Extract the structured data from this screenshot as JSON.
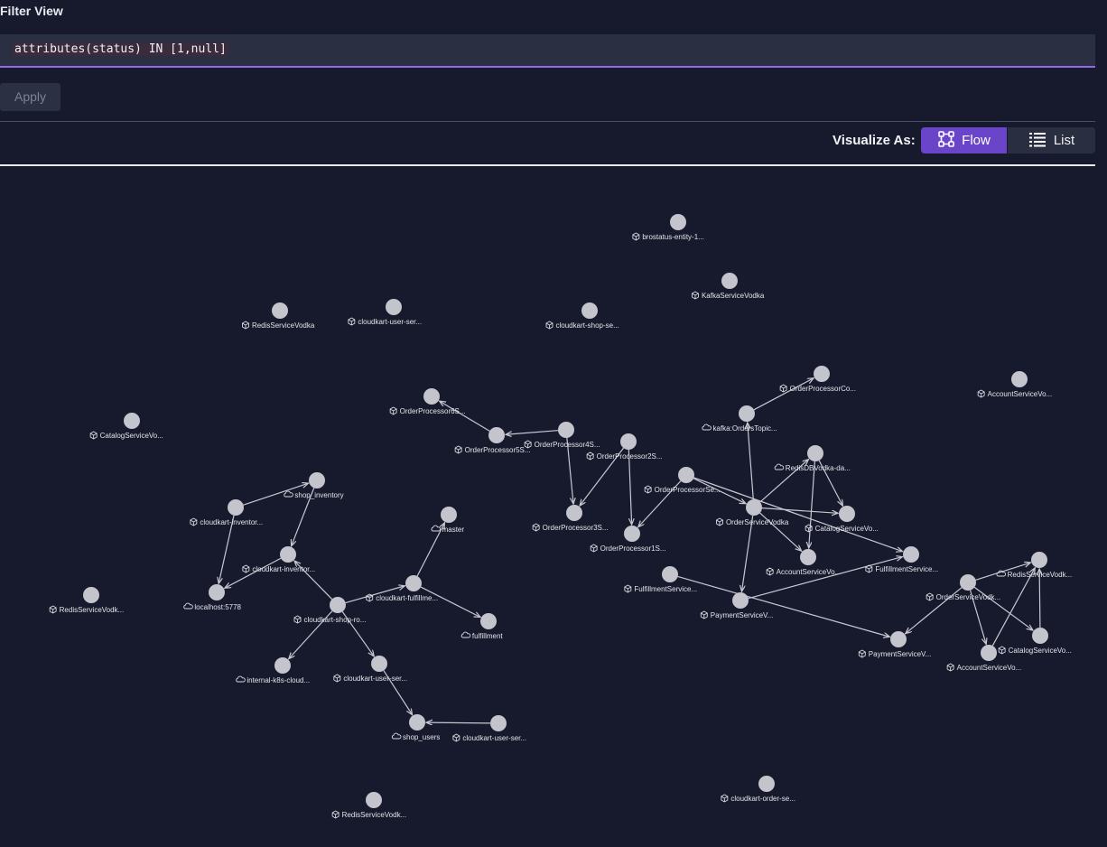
{
  "header": {
    "filter_label": "Filter View",
    "query": "attributes(status) IN [1,null]",
    "apply_label": "Apply"
  },
  "visualize": {
    "label": "Visualize As:",
    "options": [
      {
        "label": "Flow",
        "selected": true,
        "icon": "flow-icon"
      },
      {
        "label": "List",
        "selected": false,
        "icon": "list-icon"
      }
    ]
  },
  "colors": {
    "background": "#171a2c",
    "accent": "#6a45c9",
    "node": "#c4c4cc"
  },
  "graph": {
    "nodes": [
      {
        "id": "n1",
        "label": "brostatus-entity-1...",
        "icon": "service-icon"
      },
      {
        "id": "n2",
        "label": "KafkaServiceVodka",
        "icon": "service-icon"
      },
      {
        "id": "n3",
        "label": "RedisServiceVodka",
        "icon": "service-icon"
      },
      {
        "id": "n4",
        "label": "cloudkart-user-ser...",
        "icon": "service-icon"
      },
      {
        "id": "n5",
        "label": "cloudkart-shop-se...",
        "icon": "service-icon"
      },
      {
        "id": "n6",
        "label": "OrderProcessorCo...",
        "icon": "service-icon"
      },
      {
        "id": "n7",
        "label": "AccountServiceVo...",
        "icon": "service-icon"
      },
      {
        "id": "n8",
        "label": "OrderProcessor6S...",
        "icon": "service-icon"
      },
      {
        "id": "n9",
        "label": "kafka:OrdersTopic...",
        "icon": "cloud-icon"
      },
      {
        "id": "n10",
        "label": "CatalogServiceVo...",
        "icon": "service-icon"
      },
      {
        "id": "n11",
        "label": "OrderProcessor4S...",
        "icon": "service-icon"
      },
      {
        "id": "n12",
        "label": "OrderProcessor5S...",
        "icon": "service-icon"
      },
      {
        "id": "n13",
        "label": "OrderProcessor2S...",
        "icon": "service-icon"
      },
      {
        "id": "n14",
        "label": "RedisDBVodka-da...",
        "icon": "cloud-icon"
      },
      {
        "id": "n15",
        "label": "shop_inventory",
        "icon": "cloud-icon"
      },
      {
        "id": "n16",
        "label": "OrderProcessorSe...",
        "icon": "service-icon"
      },
      {
        "id": "n17",
        "label": "cloudkart-inventor...",
        "icon": "service-icon"
      },
      {
        "id": "n18",
        "label": "OrderServiceVodka",
        "icon": "service-icon"
      },
      {
        "id": "n19",
        "label": "CatalogServiceVo...",
        "icon": "service-icon"
      },
      {
        "id": "n20",
        "label": "master",
        "icon": "cloud-icon"
      },
      {
        "id": "n21",
        "label": "OrderProcessor3S...",
        "icon": "service-icon"
      },
      {
        "id": "n22",
        "label": "OrderProcessor1S...",
        "icon": "service-icon"
      },
      {
        "id": "n23",
        "label": "cloudkart-inventor...",
        "icon": "service-icon"
      },
      {
        "id": "n24",
        "label": "AccountServiceVo...",
        "icon": "service-icon"
      },
      {
        "id": "n25",
        "label": "FulfillmentService...",
        "icon": "service-icon"
      },
      {
        "id": "n26",
        "label": "RedisServiceVodk...",
        "icon": "cloud-icon"
      },
      {
        "id": "n27",
        "label": "FulfillmentService...",
        "icon": "service-icon"
      },
      {
        "id": "n28",
        "label": "OrderServiceVodk...",
        "icon": "service-icon"
      },
      {
        "id": "n29",
        "label": "cloudkart-fulfillme...",
        "icon": "service-icon"
      },
      {
        "id": "n30",
        "label": "localhost:5778",
        "icon": "cloud-icon"
      },
      {
        "id": "n31",
        "label": "RedisServiceVodk...",
        "icon": "service-icon"
      },
      {
        "id": "n32",
        "label": "PaymentServiceV...",
        "icon": "service-icon"
      },
      {
        "id": "n33",
        "label": "cloudkart-shop-ro...",
        "icon": "service-icon"
      },
      {
        "id": "n34",
        "label": "fulfillment",
        "icon": "cloud-icon"
      },
      {
        "id": "n35",
        "label": "CatalogServiceVo...",
        "icon": "service-icon"
      },
      {
        "id": "n36",
        "label": "PaymentServiceV...",
        "icon": "service-icon"
      },
      {
        "id": "n37",
        "label": "AccountServiceVo...",
        "icon": "service-icon"
      },
      {
        "id": "n38",
        "label": "internal-k8s-cloud...",
        "icon": "cloud-icon"
      },
      {
        "id": "n39",
        "label": "cloudkart-user-ser...",
        "icon": "service-icon"
      },
      {
        "id": "n40",
        "label": "shop_users",
        "icon": "cloud-icon"
      },
      {
        "id": "n41",
        "label": "cloudkart-user-ser...",
        "icon": "service-icon"
      },
      {
        "id": "n42",
        "label": "cloudkart-order-se...",
        "icon": "service-icon"
      },
      {
        "id": "n43",
        "label": "RedisServiceVodk...",
        "icon": "service-icon"
      }
    ],
    "edges": [
      [
        "n9",
        "n6"
      ],
      [
        "n11",
        "n12"
      ],
      [
        "n12",
        "n8"
      ],
      [
        "n11",
        "n21"
      ],
      [
        "n13",
        "n21"
      ],
      [
        "n13",
        "n22"
      ],
      [
        "n16",
        "n22"
      ],
      [
        "n16",
        "n18"
      ],
      [
        "n16",
        "n25"
      ],
      [
        "n18",
        "n9"
      ],
      [
        "n18",
        "n14"
      ],
      [
        "n18",
        "n19"
      ],
      [
        "n18",
        "n24"
      ],
      [
        "n18",
        "n32"
      ],
      [
        "n14",
        "n19"
      ],
      [
        "n14",
        "n24"
      ],
      [
        "n32",
        "n25"
      ],
      [
        "n17",
        "n15"
      ],
      [
        "n17",
        "n30"
      ],
      [
        "n15",
        "n23"
      ],
      [
        "n23",
        "n30"
      ],
      [
        "n33",
        "n23"
      ],
      [
        "n33",
        "n29"
      ],
      [
        "n33",
        "n38"
      ],
      [
        "n33",
        "n39"
      ],
      [
        "n29",
        "n20"
      ],
      [
        "n29",
        "n34"
      ],
      [
        "n39",
        "n40"
      ],
      [
        "n41",
        "n40"
      ],
      [
        "n28",
        "n26"
      ],
      [
        "n28",
        "n36"
      ],
      [
        "n28",
        "n37"
      ],
      [
        "n28",
        "n35"
      ],
      [
        "n37",
        "n26"
      ],
      [
        "n35",
        "n26"
      ],
      [
        "n27",
        "n36"
      ]
    ]
  }
}
